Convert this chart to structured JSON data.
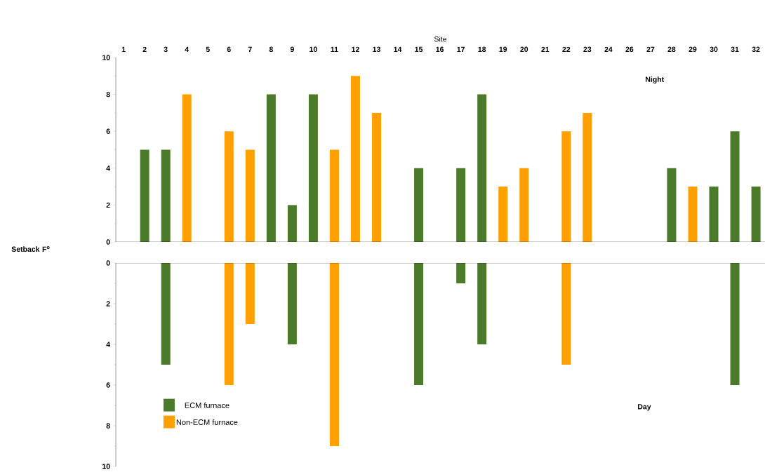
{
  "chart_data": [
    {
      "type": "bar",
      "xlabel": "Site",
      "ylabel": "Setback F$^{o}$",
      "categories": [
        "1",
        "2",
        "3",
        "4",
        "5",
        "6",
        "7",
        "8",
        "9",
        "10",
        "11",
        "12",
        "13",
        "14",
        "15",
        "16",
        "17",
        "18",
        "19",
        "20",
        "21",
        "22",
        "23",
        "24",
        "26",
        "27",
        "28",
        "29",
        "30",
        "31",
        "32"
      ],
      "series": [
        {
          "color": "#4a7a2a",
          "values": [
            null,
            5,
            5,
            null,
            null,
            null,
            null,
            8,
            2,
            8,
            null,
            null,
            null,
            null,
            4,
            null,
            4,
            8,
            null,
            null,
            null,
            null,
            null,
            null,
            null,
            null,
            4,
            null,
            3,
            6,
            3
          ]
        },
        {
          "color": "#ffa000",
          "values": [
            null,
            null,
            null,
            8,
            null,
            6,
            5,
            null,
            null,
            null,
            5,
            9,
            7,
            null,
            null,
            null,
            null,
            null,
            3,
            4,
            null,
            6,
            7,
            null,
            null,
            null,
            null,
            3,
            null,
            null,
            null
          ]
        }
      ],
      "ylim": [
        0,
        10
      ],
      "yticks": [
        0,
        2,
        4,
        6,
        8,
        10
      ],
      "annotations": [
        "Night"
      ]
    },
    {
      "type": "bar",
      "tick_labels": "y",
      "legend": "bottom left",
      "categories": [
        "1",
        "2",
        "3",
        "4",
        "5",
        "6",
        "7",
        "8",
        "9",
        "10",
        "11",
        "12",
        "13",
        "14",
        "15",
        "16",
        "17",
        "18",
        "19",
        "20",
        "21",
        "22",
        "23",
        "24",
        "26",
        "27",
        "28",
        "29",
        "30",
        "31",
        "32"
      ],
      "series": [
        {
          "name": "ECM furnace",
          "color": "#4a7a2a",
          "values": [
            null,
            null,
            5,
            null,
            null,
            null,
            null,
            null,
            4,
            null,
            null,
            null,
            null,
            null,
            6,
            null,
            1,
            4,
            null,
            null,
            null,
            null,
            null,
            null,
            null,
            null,
            null,
            null,
            null,
            6,
            null
          ]
        },
        {
          "name": "Non-ECM furnace",
          "color": "#ffa000",
          "values": [
            null,
            null,
            null,
            null,
            null,
            6,
            3,
            null,
            null,
            null,
            9,
            null,
            null,
            null,
            null,
            null,
            null,
            null,
            null,
            null,
            null,
            5,
            null,
            null,
            null,
            null,
            null,
            null,
            null,
            null,
            null
          ]
        }
      ],
      "ylim": [
        10,
        0
      ],
      "yticks": [
        0,
        2,
        4,
        6,
        8,
        10
      ],
      "annotations": [
        "Day"
      ]
    }
  ]
}
